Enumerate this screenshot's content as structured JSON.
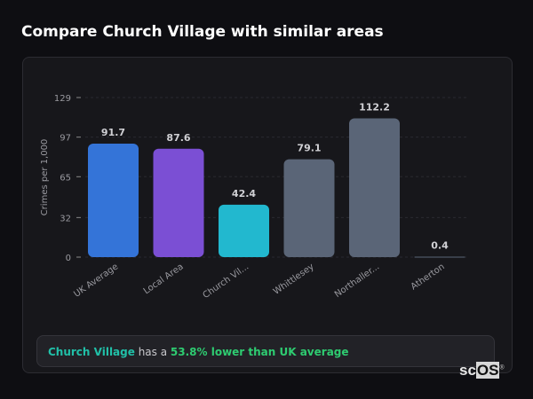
{
  "title": "Compare Church Village with similar areas",
  "chart_data": {
    "type": "bar",
    "title": "Compare Church Village with similar areas",
    "xlabel": "",
    "ylabel": "Crimes per 1,000",
    "ylim": [
      0,
      129
    ],
    "yticks": [
      0,
      32,
      65,
      97,
      129
    ],
    "categories": [
      "UK Average",
      "Local Area",
      "Church Vil...",
      "Whittlesey",
      "Northaller...",
      "Atherton"
    ],
    "values": [
      91.7,
      87.6,
      42.4,
      79.1,
      112.2,
      0.4
    ],
    "value_labels": [
      "91.7",
      "87.6",
      "42.4",
      "79.1",
      "112.2",
      "0.4"
    ],
    "colors": [
      "#3474d8",
      "#7b4fd4",
      "#22b8cf",
      "#5a6577",
      "#5a6577",
      "#5a6577"
    ],
    "grid": true
  },
  "summary": {
    "area": "Church Village",
    "middle": " has a ",
    "highlight": "53.8% lower than UK average"
  },
  "logo": {
    "left": "sc",
    "right": "OS",
    "mark": "®"
  }
}
